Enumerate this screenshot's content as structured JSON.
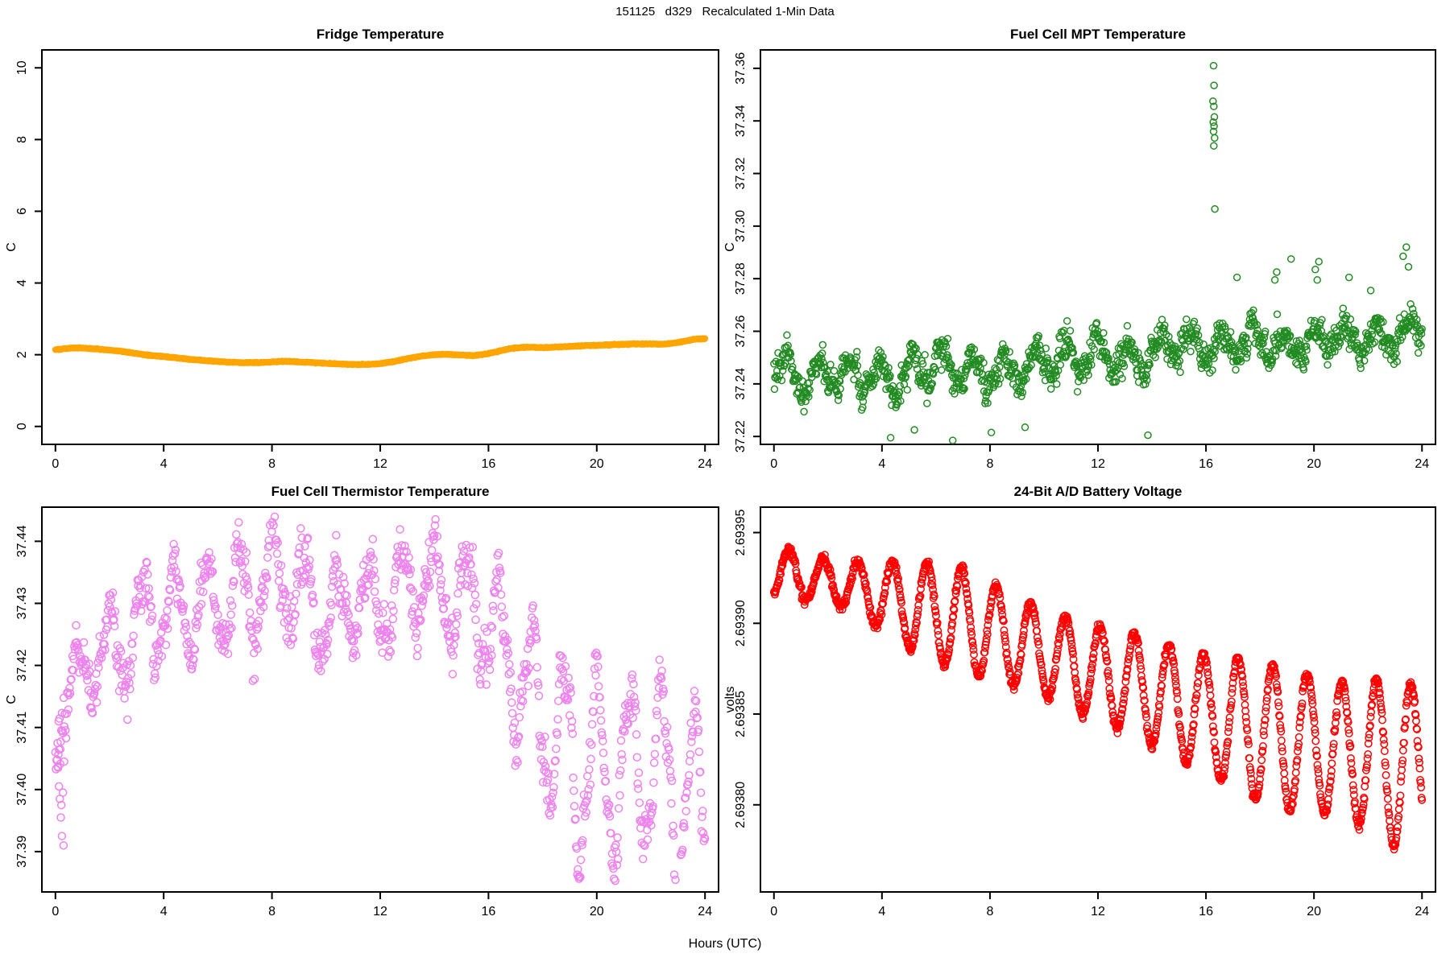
{
  "figure": {
    "title": "151125   d329   Recalculated 1-Min Data",
    "xlabel": "Hours (UTC)",
    "background": "#ffffff",
    "foreground": "#000000"
  },
  "chart_data": [
    {
      "type": "line",
      "title": "Fridge Temperature",
      "ylabel": "C",
      "color": "#FFA500",
      "xlim": [
        -0.5,
        24.5
      ],
      "ylim": [
        -0.5,
        10.5
      ],
      "x_ticks": [
        0,
        4,
        8,
        12,
        16,
        20,
        24
      ],
      "y_ticks": [
        [
          0,
          "0"
        ],
        [
          2,
          "2"
        ],
        [
          4,
          "4"
        ],
        [
          6,
          "6"
        ],
        [
          8,
          "8"
        ],
        [
          10,
          "10"
        ]
      ],
      "line_width": 8,
      "n": 1440,
      "seed": 101,
      "noise": 0.006,
      "trend": [
        [
          0,
          2.14
        ],
        [
          0.5,
          2.18
        ],
        [
          0.9,
          2.19
        ],
        [
          1.5,
          2.16
        ],
        [
          2,
          2.13
        ],
        [
          2.5,
          2.09
        ],
        [
          3,
          2.03
        ],
        [
          3.5,
          1.98
        ],
        [
          4,
          1.95
        ],
        [
          4.5,
          1.91
        ],
        [
          5,
          1.87
        ],
        [
          5.5,
          1.84
        ],
        [
          6,
          1.81
        ],
        [
          6.5,
          1.79
        ],
        [
          7,
          1.78
        ],
        [
          7.5,
          1.78
        ],
        [
          8,
          1.8
        ],
        [
          8.5,
          1.82
        ],
        [
          9,
          1.8
        ],
        [
          9.5,
          1.78
        ],
        [
          10,
          1.76
        ],
        [
          10.5,
          1.74
        ],
        [
          11,
          1.73
        ],
        [
          11.5,
          1.73
        ],
        [
          12,
          1.75
        ],
        [
          12.5,
          1.81
        ],
        [
          13,
          1.89
        ],
        [
          13.5,
          1.96
        ],
        [
          14,
          2.0
        ],
        [
          14.5,
          2.01
        ],
        [
          15,
          1.99
        ],
        [
          15.5,
          1.98
        ],
        [
          16,
          2.03
        ],
        [
          16.5,
          2.12
        ],
        [
          16.8,
          2.17
        ],
        [
          17,
          2.19
        ],
        [
          17.5,
          2.21
        ],
        [
          18,
          2.2
        ],
        [
          18.5,
          2.21
        ],
        [
          19,
          2.23
        ],
        [
          19.5,
          2.25
        ],
        [
          20,
          2.26
        ],
        [
          20.5,
          2.28
        ],
        [
          21,
          2.29
        ],
        [
          21.5,
          2.3
        ],
        [
          22,
          2.3
        ],
        [
          22.5,
          2.29
        ],
        [
          23,
          2.34
        ],
        [
          23.4,
          2.4
        ],
        [
          23.7,
          2.44
        ],
        [
          24,
          2.45
        ]
      ],
      "osc": [],
      "extra_points": []
    },
    {
      "type": "scatter",
      "title": "Fuel Cell MPT Temperature",
      "ylabel": "C",
      "color": "#228B22",
      "xlim": [
        -0.5,
        24.5
      ],
      "ylim": [
        37.217,
        37.367
      ],
      "x_ticks": [
        0,
        4,
        8,
        12,
        16,
        20,
        24
      ],
      "y_ticks": [
        [
          37.22,
          "37.22"
        ],
        [
          37.24,
          "37.24"
        ],
        [
          37.26,
          "37.26"
        ],
        [
          37.28,
          "37.28"
        ],
        [
          37.3,
          "37.30"
        ],
        [
          37.32,
          "37.32"
        ],
        [
          37.34,
          "37.34"
        ],
        [
          37.36,
          "37.36"
        ]
      ],
      "marker_radius": 4.0,
      "n": 1250,
      "seed": 202,
      "noise": 0.0028,
      "trend": [
        [
          0,
          37.247
        ],
        [
          1,
          37.242
        ],
        [
          2,
          37.244
        ],
        [
          3,
          37.243
        ],
        [
          4,
          37.241
        ],
        [
          5,
          37.244
        ],
        [
          6,
          37.248
        ],
        [
          7,
          37.245
        ],
        [
          8,
          37.244
        ],
        [
          9,
          37.246
        ],
        [
          10,
          37.249
        ],
        [
          11,
          37.25
        ],
        [
          12,
          37.252
        ],
        [
          13,
          37.248
        ],
        [
          14,
          37.251
        ],
        [
          14.5,
          37.256
        ],
        [
          15,
          37.256
        ],
        [
          16,
          37.254
        ],
        [
          17,
          37.255
        ],
        [
          18,
          37.256
        ],
        [
          19,
          37.254
        ],
        [
          20,
          37.257
        ],
        [
          21,
          37.258
        ],
        [
          22,
          37.256
        ],
        [
          23,
          37.259
        ],
        [
          24,
          37.261
        ]
      ],
      "osc": [
        {
          "period": 1.15,
          "phase": 0.2,
          "amp": [
            [
              0,
              0.0055
            ],
            [
              4,
              0.0065
            ],
            [
              8,
              0.006
            ],
            [
              12,
              0.0065
            ],
            [
              14,
              0.005
            ],
            [
              16,
              0.0045
            ],
            [
              20,
              0.005
            ],
            [
              24,
              0.0055
            ]
          ]
        },
        {
          "period": 0.42,
          "phase": 0,
          "amp": [
            [
              0,
              0.002
            ],
            [
              24,
              0.002
            ]
          ]
        }
      ],
      "extra_points": [
        [
          16.28,
          37.361
        ],
        [
          16.3,
          37.3535
        ],
        [
          16.26,
          37.3475
        ],
        [
          16.29,
          37.3455
        ],
        [
          16.31,
          37.3415
        ],
        [
          16.27,
          37.3395
        ],
        [
          16.3,
          37.338
        ],
        [
          16.28,
          37.336
        ],
        [
          16.32,
          37.3335
        ],
        [
          16.29,
          37.3305
        ],
        [
          16.33,
          37.3065
        ],
        [
          17.15,
          37.2805
        ],
        [
          18.55,
          37.2795
        ],
        [
          18.62,
          37.2825
        ],
        [
          19.15,
          37.2875
        ],
        [
          20.05,
          37.2835
        ],
        [
          20.12,
          37.2795
        ],
        [
          20.18,
          37.2865
        ],
        [
          21.3,
          37.2805
        ],
        [
          22.1,
          37.2755
        ],
        [
          23.3,
          37.2885
        ],
        [
          23.42,
          37.292
        ],
        [
          23.5,
          37.2845
        ],
        [
          4.32,
          37.2195
        ],
        [
          5.2,
          37.2225
        ],
        [
          6.62,
          37.2185
        ],
        [
          8.05,
          37.2215
        ],
        [
          9.3,
          37.2235
        ],
        [
          13.85,
          37.2205
        ]
      ]
    },
    {
      "type": "scatter",
      "title": "Fuel Cell Thermistor Temperature",
      "ylabel": "C",
      "color": "#EE82EE",
      "xlim": [
        -0.5,
        24.5
      ],
      "ylim": [
        37.3835,
        37.4455
      ],
      "x_ticks": [
        0,
        4,
        8,
        12,
        16,
        20,
        24
      ],
      "y_ticks": [
        [
          37.39,
          "37.39"
        ],
        [
          37.4,
          "37.40"
        ],
        [
          37.41,
          "37.41"
        ],
        [
          37.42,
          "37.42"
        ],
        [
          37.43,
          "37.43"
        ],
        [
          37.44,
          "37.44"
        ]
      ],
      "marker_radius": 4.5,
      "n": 1100,
      "seed": 303,
      "noise": 0.0018,
      "trend": [
        [
          0,
          37.409
        ],
        [
          0.5,
          37.416
        ],
        [
          1,
          37.419
        ],
        [
          1.5,
          37.421
        ],
        [
          2,
          37.424
        ],
        [
          2.5,
          37.422
        ],
        [
          3,
          37.427
        ],
        [
          4,
          37.429
        ],
        [
          5,
          37.428
        ],
        [
          6,
          37.431
        ],
        [
          7,
          37.431
        ],
        [
          8,
          37.434
        ],
        [
          8.5,
          37.435
        ],
        [
          9,
          37.431
        ],
        [
          10,
          37.428
        ],
        [
          11,
          37.43
        ],
        [
          12,
          37.43
        ],
        [
          13,
          37.432
        ],
        [
          13.6,
          37.434
        ],
        [
          14,
          37.432
        ],
        [
          15,
          37.431
        ],
        [
          16,
          37.427
        ],
        [
          16.5,
          37.423
        ],
        [
          17,
          37.418
        ],
        [
          17.5,
          37.415
        ],
        [
          18,
          37.412
        ],
        [
          18.7,
          37.407
        ],
        [
          19.2,
          37.403
        ],
        [
          20,
          37.404
        ],
        [
          20.8,
          37.402
        ],
        [
          21.5,
          37.405
        ],
        [
          22,
          37.404
        ],
        [
          22.6,
          37.402
        ],
        [
          23.2,
          37.398
        ],
        [
          24,
          37.398
        ]
      ],
      "osc": [
        {
          "period": 1.2,
          "phase": 0.5,
          "amp": [
            [
              0,
              0.0035
            ],
            [
              2,
              0.0055
            ],
            [
              4,
              0.007
            ],
            [
              6,
              0.0075
            ],
            [
              8,
              0.008
            ],
            [
              10,
              0.007
            ],
            [
              12,
              0.0065
            ],
            [
              13.5,
              0.0075
            ],
            [
              15,
              0.008
            ],
            [
              16,
              0.009
            ],
            [
              17,
              0.01
            ],
            [
              18,
              0.012
            ],
            [
              19,
              0.015
            ],
            [
              20,
              0.014
            ],
            [
              21,
              0.013
            ],
            [
              22,
              0.013
            ],
            [
              23,
              0.016
            ],
            [
              24,
              0.014
            ]
          ]
        },
        {
          "period": 0.46,
          "phase": 0.1,
          "amp": [
            [
              0,
              0.0015
            ],
            [
              8,
              0.002
            ],
            [
              16,
              0.002
            ],
            [
              20,
              0.0035
            ],
            [
              24,
              0.003
            ]
          ]
        }
      ],
      "extra_points": [
        [
          0.08,
          37.4075
        ],
        [
          0.1,
          37.4035
        ],
        [
          0.13,
          37.4005
        ],
        [
          0.16,
          37.3985
        ],
        [
          0.2,
          37.3955
        ],
        [
          0.24,
          37.3925
        ],
        [
          0.28,
          37.3995
        ],
        [
          0.32,
          37.4045
        ],
        [
          0.12,
          37.411
        ],
        [
          0.18,
          37.4065
        ],
        [
          0.22,
          37.3975
        ],
        [
          0.3,
          37.391
        ]
      ]
    },
    {
      "type": "scatter",
      "title": "24-Bit A/D Battery Voltage",
      "ylabel": "volts",
      "color": "#FF0000",
      "xlim": [
        -0.5,
        24.5
      ],
      "ylim": [
        2.693752,
        2.693964
      ],
      "x_ticks": [
        0,
        4,
        8,
        12,
        16,
        20,
        24
      ],
      "y_ticks": [
        [
          2.6938,
          "2.69380"
        ],
        [
          2.69385,
          "2.69385"
        ],
        [
          2.6939,
          "2.69390"
        ],
        [
          2.69395,
          "2.69395"
        ]
      ],
      "marker_radius": 4.2,
      "n": 1440,
      "seed": 404,
      "noise": 1.2e-06,
      "trend": [
        [
          0,
          2.693928
        ],
        [
          1,
          2.693926
        ],
        [
          2,
          2.693923
        ],
        [
          3,
          2.69392
        ],
        [
          4,
          2.693915
        ],
        [
          5,
          2.69391
        ],
        [
          6,
          2.693906
        ],
        [
          7,
          2.693902
        ],
        [
          8,
          2.693896
        ],
        [
          9,
          2.69389
        ],
        [
          10,
          2.693884
        ],
        [
          11,
          2.693878
        ],
        [
          12,
          2.693872
        ],
        [
          13,
          2.693868
        ],
        [
          14,
          2.693862
        ],
        [
          15,
          2.693856
        ],
        [
          16,
          2.69385
        ],
        [
          17,
          2.693846
        ],
        [
          18,
          2.69384
        ],
        [
          19,
          2.693836
        ],
        [
          20,
          2.693834
        ],
        [
          21,
          2.69383
        ],
        [
          22,
          2.693828
        ],
        [
          23,
          2.693824
        ],
        [
          24,
          2.69382
        ]
      ],
      "osc": [
        {
          "period": 1.28,
          "phase": 0.23,
          "amp": [
            [
              0,
              1.35e-05
            ],
            [
              1,
              1.25e-05
            ],
            [
              2,
              1.2e-05
            ],
            [
              3,
              1.35e-05
            ],
            [
              4,
              1.9e-05
            ],
            [
              5,
              2.35e-05
            ],
            [
              6,
              2.7e-05
            ],
            [
              7,
              2.85e-05
            ],
            [
              8,
              2.65e-05
            ],
            [
              9,
              2.45e-05
            ],
            [
              10,
              2.35e-05
            ],
            [
              11,
              2.45e-05
            ],
            [
              12,
              2.6e-05
            ],
            [
              13,
              2.75e-05
            ],
            [
              14,
              2.9e-05
            ],
            [
              15,
              3.05e-05
            ],
            [
              16,
              3.25e-05
            ],
            [
              17,
              3.55e-05
            ],
            [
              18,
              3.85e-05
            ],
            [
              19,
              3.95e-05
            ],
            [
              20,
              3.65e-05
            ],
            [
              21,
              3.75e-05
            ],
            [
              22,
              3.95e-05
            ],
            [
              23,
              4.75e-05
            ],
            [
              24,
              4.25e-05
            ]
          ]
        }
      ],
      "extra_points": []
    }
  ]
}
